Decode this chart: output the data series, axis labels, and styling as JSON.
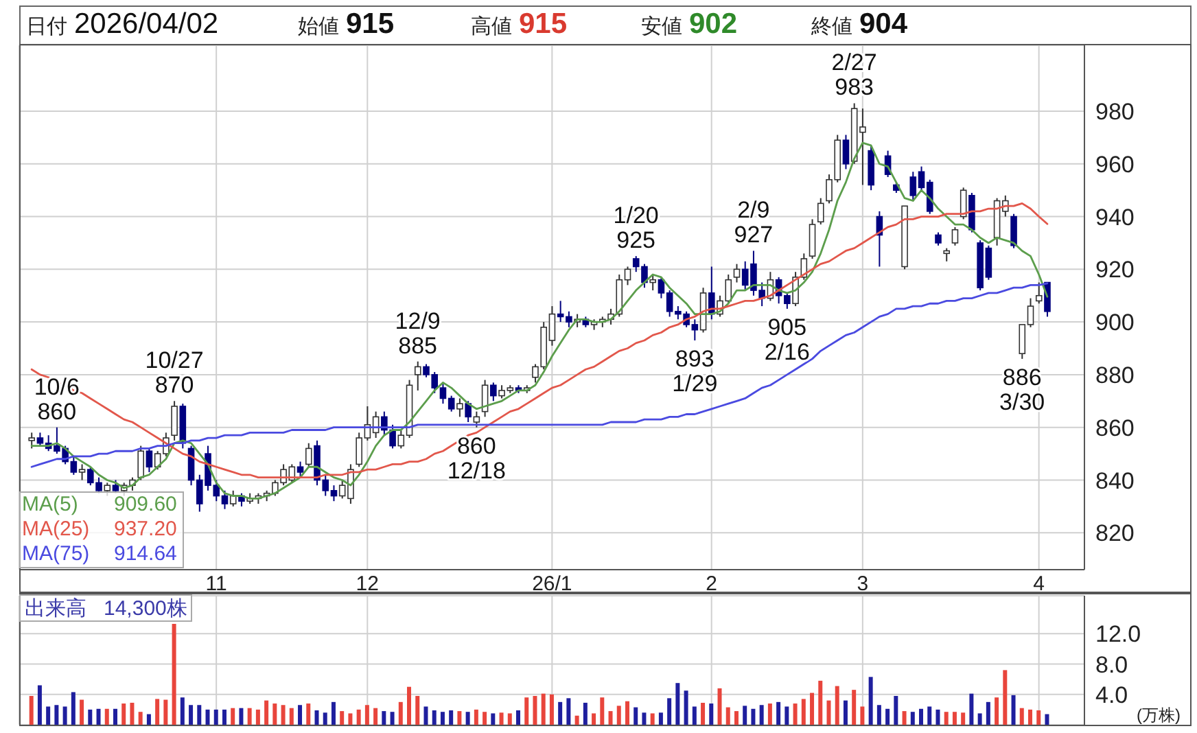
{
  "chart_data": [
    {
      "type": "candlestick",
      "grid": true,
      "colors": [
        "#ffffff",
        "#00007f",
        "#00007f",
        "#00007f",
        "#00007f",
        "#00007f",
        "#ffffff",
        "#00007f",
        "#00007f",
        "#ffffff",
        "#00007f",
        "#ffffff",
        "#ffffff",
        "#ffffff",
        "#00007f",
        "#ffffff",
        "#ffffff",
        "#ffffff",
        "#00007f",
        "#00007f",
        "#00007f",
        "#00007f",
        "#00007f",
        "#00007f",
        "#ffffff",
        "#00007f",
        "#ffffff",
        "#ffffff",
        "#ffffff",
        "#ffffff",
        "#ffffff",
        "#ffffff",
        "#00007f",
        "#ffffff",
        "#00007f",
        "#00007f",
        "#00007f",
        "#ffffff",
        "#ffffff",
        "#ffffff",
        "#ffffff",
        "#ffffff",
        "#00007f",
        "#00007f",
        "#ffffff",
        "#ffffff",
        "#ffffff",
        "#00007f",
        "#00007f",
        "#00007f",
        "#00007f",
        "#ffffff",
        "#00007f",
        "#ffffff",
        "#ffffff",
        "#00007f",
        "#ffffff",
        "#ffffff",
        "#00007f",
        "#ffffff",
        "#ffffff",
        "#ffffff",
        "#ffffff",
        "#00007f",
        "#00007f",
        "#ffffff",
        "#00007f",
        "#ffffff",
        "#ffffff",
        "#ffffff",
        "#ffffff",
        "#ffffff",
        "#00007f",
        "#00007f",
        "#ffffff",
        "#00007f",
        "#00007f",
        "#00007f",
        "#00007f",
        "#00007f",
        "#ffffff",
        "#00007f",
        "#ffffff",
        "#ffffff",
        "#ffffff",
        "#00007f",
        "#00007f",
        "#00007f",
        "#ffffff",
        "#00007f",
        "#00007f",
        "#ffffff",
        "#ffffff",
        "#ffffff",
        "#ffffff",
        "#ffffff",
        "#ffffff",
        "#00007f",
        "#ffffff",
        "#ffffff",
        "#00007f",
        "#00007f",
        "#00007f",
        "#00007f",
        "#ffffff",
        "#00007f",
        "#00007f",
        "#00007f",
        "#00007f",
        "#ffffff",
        "#ffffff",
        "#ffffff",
        "#00007f",
        "#00007f",
        "#00007f",
        "#ffffff",
        "#ffffff",
        "#00007f",
        "#ffffff",
        "#ffffff",
        "#ffffff",
        "#00007f"
      ],
      "legend": "bottom left",
      "annotations": [
        "日付 2026/04/02",
        "始値 915",
        "高値 915",
        "安値 902",
        "終値 904",
        "909.60",
        "937.20",
        "914.64",
        {
          "text": "10/6\n860",
          "y": 860
        },
        {
          "text": "10/27\n870",
          "y": 870
        },
        {
          "text": "12/9\n885",
          "y": 885
        },
        {
          "text": "860\n12/18",
          "y": 860
        },
        {
          "text": "1/20\n925",
          "y": 925
        },
        {
          "text": "893\n1/29",
          "y": 893
        },
        {
          "text": "2/9\n927",
          "y": 927
        },
        {
          "text": "905\n2/16",
          "y": 905
        },
        {
          "text": "2/27\n983",
          "y": 983
        },
        {
          "text": "886\n3/30",
          "y": 886
        }
      ],
      "categories": [
        null,
        null,
        null,
        null,
        null,
        null,
        null,
        null,
        null,
        null,
        null,
        null,
        null,
        null,
        null,
        null,
        null,
        null,
        null,
        null,
        null,
        null,
        "11",
        null,
        null,
        null,
        null,
        null,
        null,
        null,
        null,
        null,
        null,
        null,
        null,
        null,
        null,
        null,
        null,
        null,
        "12",
        null,
        null,
        null,
        null,
        null,
        null,
        null,
        null,
        null,
        null,
        null,
        null,
        null,
        null,
        null,
        null,
        null,
        null,
        null,
        null,
        null,
        "26/1",
        null,
        null,
        null,
        null,
        null,
        null,
        null,
        null,
        null,
        null,
        null,
        null,
        null,
        null,
        null,
        null,
        null,
        null,
        "2",
        null,
        null,
        null,
        null,
        null,
        null,
        null,
        null,
        null,
        null,
        null,
        null,
        null,
        null,
        null,
        null,
        null,
        "3",
        null,
        null,
        null,
        null,
        null,
        null,
        null,
        null,
        null,
        null,
        null,
        null,
        null,
        null,
        null,
        null,
        null,
        null,
        null,
        null,
        "4",
        null
      ],
      "ohlc": [
        [
          855,
          858,
          852,
          856
        ],
        [
          856,
          858,
          853,
          854
        ],
        [
          854,
          857,
          851,
          852
        ],
        [
          853,
          860,
          850,
          851
        ],
        [
          852,
          853,
          846,
          847
        ],
        [
          847,
          849,
          842,
          843
        ],
        [
          843,
          846,
          840,
          844
        ],
        [
          844,
          845,
          838,
          839
        ],
        [
          839,
          841,
          835,
          836
        ],
        [
          836,
          839,
          834,
          838
        ],
        [
          838,
          840,
          835,
          836
        ],
        [
          836,
          839,
          834,
          838
        ],
        [
          838,
          841,
          836,
          840
        ],
        [
          841,
          853,
          840,
          851
        ],
        [
          851,
          852,
          843,
          845
        ],
        [
          845,
          851,
          844,
          850
        ],
        [
          850,
          858,
          849,
          856
        ],
        [
          857,
          870,
          855,
          868
        ],
        [
          868,
          869,
          852,
          854
        ],
        [
          852,
          853,
          838,
          840
        ],
        [
          840,
          842,
          828,
          831
        ],
        [
          850,
          853,
          836,
          838
        ],
        [
          838,
          840,
          832,
          834
        ],
        [
          834,
          836,
          829,
          831
        ],
        [
          831,
          836,
          830,
          834
        ],
        [
          834,
          835,
          830,
          832
        ],
        [
          832,
          835,
          831,
          833
        ],
        [
          833,
          835,
          831,
          834
        ],
        [
          834,
          836,
          832,
          835
        ],
        [
          835,
          840,
          834,
          839
        ],
        [
          839,
          846,
          838,
          844
        ],
        [
          840,
          846,
          839,
          845
        ],
        [
          845,
          847,
          841,
          843
        ],
        [
          846,
          854,
          845,
          852
        ],
        [
          853,
          855,
          838,
          840
        ],
        [
          840,
          842,
          834,
          836
        ],
        [
          836,
          838,
          832,
          834
        ],
        [
          834,
          840,
          833,
          838
        ],
        [
          833,
          846,
          831,
          844
        ],
        [
          846,
          858,
          845,
          856
        ],
        [
          856,
          868,
          855,
          861
        ],
        [
          858,
          866,
          856,
          864
        ],
        [
          864,
          866,
          857,
          859
        ],
        [
          859,
          861,
          852,
          853
        ],
        [
          853,
          859,
          852,
          857
        ],
        [
          857,
          878,
          856,
          876
        ],
        [
          880,
          885,
          874,
          883
        ],
        [
          883,
          884,
          879,
          880
        ],
        [
          880,
          881,
          873,
          875
        ],
        [
          875,
          877,
          869,
          871
        ],
        [
          871,
          872,
          866,
          867
        ],
        [
          867,
          871,
          864,
          869
        ],
        [
          869,
          870,
          862,
          864
        ],
        [
          862,
          866,
          860,
          864
        ],
        [
          866,
          878,
          864,
          876
        ],
        [
          876,
          877,
          870,
          872
        ],
        [
          872,
          876,
          871,
          874
        ],
        [
          874,
          876,
          873,
          875
        ],
        [
          875,
          876,
          873,
          874
        ],
        [
          874,
          876,
          873,
          875
        ],
        [
          879,
          884,
          877,
          883
        ],
        [
          883,
          900,
          882,
          898
        ],
        [
          893,
          906,
          891,
          903
        ],
        [
          903,
          908,
          900,
          902
        ],
        [
          902,
          904,
          898,
          900
        ],
        [
          900,
          903,
          898,
          901
        ],
        [
          901,
          902,
          898,
          899
        ],
        [
          899,
          901,
          897,
          900
        ],
        [
          900,
          902,
          898,
          901
        ],
        [
          901,
          905,
          899,
          903
        ],
        [
          903,
          918,
          902,
          916
        ],
        [
          916,
          921,
          914,
          920
        ],
        [
          924,
          925,
          919,
          921
        ],
        [
          921,
          922,
          913,
          915
        ],
        [
          915,
          918,
          912,
          916
        ],
        [
          916,
          917,
          909,
          911
        ],
        [
          911,
          912,
          902,
          904
        ],
        [
          904,
          906,
          901,
          903
        ],
        [
          903,
          904,
          898,
          899
        ],
        [
          899,
          901,
          893,
          897
        ],
        [
          897,
          913,
          896,
          911
        ],
        [
          911,
          921,
          901,
          903
        ],
        [
          903,
          910,
          902,
          908
        ],
        [
          908,
          918,
          907,
          916
        ],
        [
          917,
          922,
          915,
          920
        ],
        [
          920,
          923,
          912,
          914
        ],
        [
          922,
          927,
          910,
          912
        ],
        [
          912,
          915,
          906,
          909
        ],
        [
          909,
          919,
          908,
          916
        ],
        [
          916,
          917,
          907,
          910
        ],
        [
          910,
          911,
          905,
          907
        ],
        [
          907,
          919,
          906,
          917
        ],
        [
          917,
          926,
          916,
          924
        ],
        [
          925,
          939,
          924,
          937
        ],
        [
          938,
          947,
          937,
          945
        ],
        [
          946,
          956,
          945,
          954
        ],
        [
          954,
          971,
          953,
          969
        ],
        [
          969,
          971,
          958,
          960
        ],
        [
          961,
          983,
          960,
          981
        ],
        [
          972,
          981,
          952,
          974
        ],
        [
          965,
          967,
          950,
          952
        ],
        [
          940,
          942,
          921,
          933
        ],
        [
          963,
          965,
          955,
          956
        ],
        [
          952,
          953,
          949,
          950
        ],
        [
          921,
          944,
          920,
          944
        ],
        [
          955,
          957,
          946,
          948
        ],
        [
          957,
          959,
          950,
          951
        ],
        [
          953,
          954,
          941,
          942
        ],
        [
          933,
          934,
          929,
          930
        ],
        [
          926,
          928,
          923,
          927
        ],
        [
          930,
          936,
          929,
          935
        ],
        [
          940,
          951,
          939,
          950
        ],
        [
          948,
          949,
          934,
          935
        ],
        [
          930,
          931,
          912,
          913
        ],
        [
          928,
          929,
          916,
          917
        ],
        [
          932,
          947,
          929,
          946
        ],
        [
          942,
          948,
          940,
          946
        ],
        [
          940,
          941,
          928,
          929
        ],
        [
          888,
          899,
          886,
          899
        ],
        [
          899,
          909,
          898,
          906
        ],
        [
          908,
          915,
          907,
          910
        ],
        [
          915,
          915,
          902,
          904
        ]
      ],
      "series": [
        {
          "type": "line",
          "name": "MA(5)",
          "color": "#5c9e4c",
          "values": [
            853,
            853,
            853,
            854,
            852,
            849,
            847,
            845,
            842,
            840,
            839,
            837,
            838,
            841,
            842,
            845,
            848,
            854,
            855,
            854,
            850,
            846,
            839,
            835,
            834,
            834,
            833,
            833,
            834,
            835,
            837,
            839,
            841,
            845,
            845,
            843,
            841,
            840,
            838,
            842,
            847,
            853,
            857,
            859,
            859,
            862,
            866,
            870,
            874,
            877,
            875,
            872,
            869,
            867,
            868,
            869,
            870,
            872,
            874,
            874,
            876,
            881,
            887,
            892,
            897,
            901,
            901,
            900,
            900,
            901,
            904,
            908,
            912,
            915,
            918,
            917,
            913,
            910,
            907,
            903,
            903,
            903,
            904,
            907,
            912,
            912,
            914,
            914,
            914,
            912,
            911,
            912,
            915,
            919,
            926,
            935,
            946,
            953,
            962,
            968,
            967,
            960,
            959,
            953,
            947,
            946,
            950,
            947,
            943,
            940,
            937,
            937,
            935,
            932,
            930,
            932,
            931,
            930,
            927,
            925,
            918,
            909.6
          ]
        },
        {
          "type": "line",
          "name": "MA(25)",
          "color": "#e2574b",
          "values": [
            882,
            880,
            879,
            877,
            876,
            874,
            873,
            871,
            869,
            867,
            865,
            863,
            862,
            860,
            858,
            856,
            854,
            852,
            850,
            849,
            847,
            846,
            845,
            844,
            843,
            842,
            842,
            841,
            841,
            841,
            841,
            841,
            841,
            841,
            841,
            842,
            842,
            842,
            843,
            843,
            844,
            844,
            845,
            846,
            846,
            847,
            847,
            848,
            850,
            851,
            853,
            855,
            857,
            858,
            860,
            862,
            864,
            866,
            867,
            869,
            871,
            873,
            875,
            876,
            878,
            880,
            882,
            883,
            885,
            887,
            889,
            890,
            892,
            893,
            895,
            896,
            898,
            899,
            901,
            902,
            904,
            905,
            905,
            906,
            907,
            908,
            908,
            909,
            910,
            912,
            914,
            916,
            918,
            920,
            922,
            923,
            925,
            927,
            928,
            930,
            932,
            934,
            936,
            937,
            939,
            939,
            940,
            940,
            940,
            941,
            941,
            941,
            942,
            942,
            943,
            943,
            944,
            944,
            945,
            943,
            940,
            937.2
          ]
        },
        {
          "type": "line",
          "name": "MA(75)",
          "color": "#4a4ae0",
          "values": [
            845,
            846,
            847,
            848,
            848,
            849,
            849,
            849,
            850,
            850,
            851,
            851,
            851,
            852,
            852,
            853,
            853,
            854,
            854,
            855,
            855,
            856,
            856,
            857,
            857,
            857,
            858,
            858,
            858,
            858,
            858,
            859,
            859,
            859,
            859,
            859,
            860,
            860,
            860,
            860,
            860,
            860,
            860,
            860,
            860,
            860,
            861,
            861,
            861,
            861,
            861,
            861,
            861,
            861,
            861,
            861,
            861,
            861,
            861,
            861,
            861,
            861,
            861,
            861,
            861,
            861,
            861,
            861,
            861,
            862,
            862,
            862,
            862,
            863,
            863,
            863,
            864,
            864,
            865,
            865,
            866,
            867,
            868,
            869,
            870,
            871,
            873,
            875,
            876,
            878,
            880,
            882,
            884,
            886,
            889,
            891,
            893,
            895,
            896,
            898,
            900,
            902,
            903,
            905,
            905,
            906,
            906,
            907,
            907,
            908,
            908,
            909,
            909,
            910,
            911,
            911,
            912,
            913,
            913,
            914,
            914,
            914.64
          ]
        }
      ],
      "ylim": [
        806,
        1005
      ],
      "yticks": [
        820,
        840,
        860,
        880,
        900,
        920,
        940,
        960,
        980
      ]
    },
    {
      "type": "bar",
      "grid": true,
      "tick_labels": "y",
      "ylabel": "(万株)",
      "annotations": [
        "出来高 14,300株"
      ],
      "categories": [
        null,
        null,
        null,
        null,
        null,
        null,
        null,
        null,
        null,
        null,
        null,
        null,
        null,
        null,
        null,
        null,
        null,
        null,
        null,
        null,
        null,
        null,
        null,
        null,
        null,
        null,
        null,
        null,
        null,
        null,
        null,
        null,
        null,
        null,
        null,
        null,
        null,
        null,
        null,
        null,
        null,
        null,
        null,
        null,
        null,
        null,
        null,
        null,
        null,
        null,
        null,
        null,
        null,
        null,
        null,
        null,
        null,
        null,
        null,
        null,
        null,
        null,
        null,
        null,
        null,
        null,
        null,
        null,
        null,
        null,
        null,
        null,
        null,
        null,
        null,
        null,
        null,
        null,
        null,
        null,
        null,
        null,
        null,
        null,
        null,
        null,
        null,
        null,
        null,
        null,
        null,
        null,
        null,
        null,
        null,
        null,
        null,
        null,
        null,
        null,
        null,
        null,
        null,
        null,
        null,
        null,
        null,
        null,
        null,
        null,
        null,
        null,
        null,
        null,
        null,
        null,
        null,
        null,
        null,
        null,
        null,
        null
      ],
      "values": [
        3.8,
        5.2,
        2.4,
        2.6,
        2.4,
        4.3,
        3.3,
        2.0,
        2.1,
        2.1,
        2.1,
        2.8,
        2.9,
        1.7,
        1.4,
        3.4,
        3.3,
        13.3,
        3.6,
        2.6,
        2.6,
        2.0,
        2.0,
        2.0,
        2.2,
        2.2,
        2.2,
        2.0,
        3.2,
        2.8,
        2.6,
        2.2,
        2.6,
        2.8,
        1.9,
        1.6,
        3.0,
        1.8,
        1.5,
        2.0,
        2.6,
        2.2,
        1.8,
        1.7,
        3.0,
        5.0,
        3.8,
        2.4,
        1.9,
        1.7,
        1.9,
        1.8,
        1.7,
        2.0,
        1.7,
        1.5,
        1.6,
        1.5,
        1.9,
        3.6,
        3.8,
        4.1,
        4.0,
        3.0,
        3.5,
        1.2,
        2.9,
        1.5,
        3.6,
        1.8,
        2.5,
        3.1,
        2.3,
        1.6,
        1.5,
        1.6,
        3.5,
        5.5,
        4.5,
        2.4,
        2.9,
        2.8,
        4.8,
        2.3,
        1.8,
        2.5,
        2.1,
        2.6,
        2.8,
        3.0,
        2.4,
        2.8,
        3.4,
        4.2,
        5.8,
        3.2,
        5.1,
        3.2,
        4.6,
        2.4,
        6.3,
        2.6,
        2.1,
        3.8,
        1.8,
        1.7,
        2.1,
        2.4,
        2.0,
        1.7,
        1.7,
        1.6,
        4.1,
        1.5,
        3.0,
        3.6,
        7.2,
        3.9,
        2.2,
        2.0,
        1.9,
        1.4
      ],
      "colors": [
        "#e8453c",
        "#1f1f9e",
        "#1f1f9e",
        "#1f1f9e",
        "#1f1f9e",
        "#1f1f9e",
        "#e8453c",
        "#1f1f9e",
        "#1f1f9e",
        "#e8453c",
        "#1f1f9e",
        "#e8453c",
        "#e8453c",
        "#e8453c",
        "#1f1f9e",
        "#e8453c",
        "#e8453c",
        "#e8453c",
        "#1f1f9e",
        "#1f1f9e",
        "#1f1f9e",
        "#1f1f9e",
        "#1f1f9e",
        "#1f1f9e",
        "#e8453c",
        "#1f1f9e",
        "#e8453c",
        "#e8453c",
        "#e8453c",
        "#e8453c",
        "#e8453c",
        "#e8453c",
        "#1f1f9e",
        "#e8453c",
        "#1f1f9e",
        "#1f1f9e",
        "#1f1f9e",
        "#e8453c",
        "#e8453c",
        "#e8453c",
        "#e8453c",
        "#e8453c",
        "#1f1f9e",
        "#1f1f9e",
        "#e8453c",
        "#e8453c",
        "#e8453c",
        "#1f1f9e",
        "#1f1f9e",
        "#1f1f9e",
        "#1f1f9e",
        "#e8453c",
        "#1f1f9e",
        "#e8453c",
        "#e8453c",
        "#1f1f9e",
        "#e8453c",
        "#e8453c",
        "#1f1f9e",
        "#e8453c",
        "#e8453c",
        "#e8453c",
        "#e8453c",
        "#1f1f9e",
        "#1f1f9e",
        "#e8453c",
        "#1f1f9e",
        "#e8453c",
        "#e8453c",
        "#e8453c",
        "#e8453c",
        "#e8453c",
        "#1f1f9e",
        "#1f1f9e",
        "#e8453c",
        "#1f1f9e",
        "#1f1f9e",
        "#1f1f9e",
        "#1f1f9e",
        "#1f1f9e",
        "#e8453c",
        "#1f1f9e",
        "#e8453c",
        "#e8453c",
        "#e8453c",
        "#1f1f9e",
        "#1f1f9e",
        "#1f1f9e",
        "#e8453c",
        "#1f1f9e",
        "#1f1f9e",
        "#e8453c",
        "#e8453c",
        "#e8453c",
        "#e8453c",
        "#e8453c",
        "#e8453c",
        "#1f1f9e",
        "#e8453c",
        "#e8453c",
        "#1f1f9e",
        "#1f1f9e",
        "#1f1f9e",
        "#1f1f9e",
        "#e8453c",
        "#1f1f9e",
        "#1f1f9e",
        "#1f1f9e",
        "#1f1f9e",
        "#e8453c",
        "#e8453c",
        "#e8453c",
        "#1f1f9e",
        "#1f1f9e",
        "#1f1f9e",
        "#e8453c",
        "#e8453c",
        "#1f1f9e",
        "#e8453c",
        "#e8453c",
        "#e8453c",
        "#1f1f9e"
      ],
      "ylim": [
        0,
        17
      ],
      "yticks": [
        {
          "value": 4,
          "label": "4.0"
        },
        {
          "value": 8,
          "label": "8.0"
        },
        {
          "value": 12,
          "label": "12.0"
        }
      ]
    }
  ]
}
